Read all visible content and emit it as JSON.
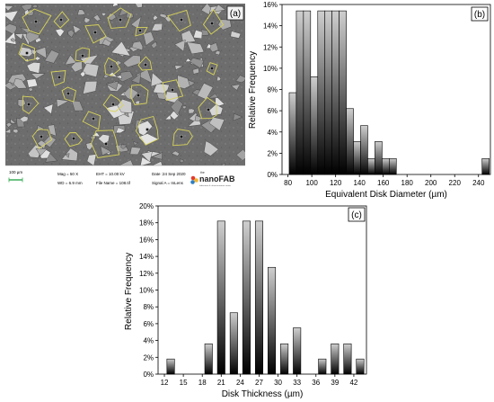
{
  "panel_a": {
    "tag": "(a)",
    "scalebar": "100 µm",
    "mag": "Mag =    50 X",
    "wd": "WD =   6.9 mm",
    "eht": "EHT = 10.00 kV",
    "file": "File Name = 108.tif",
    "date": "Date :24 Sep 2020",
    "signal": "Signal A = InLens",
    "logo_small": "the",
    "logo_big": "nanoFAB",
    "logo_sub": "fabrication & characterization centre"
  },
  "chart_data": [
    {
      "id": "b",
      "type": "bar",
      "tag": "(b)",
      "xlabel": "Equivalent Disk Diameter (µm)",
      "ylabel": "Relative Frequency",
      "xlim": [
        75,
        250
      ],
      "xticks": [
        80,
        100,
        120,
        140,
        160,
        180,
        200,
        220,
        240
      ],
      "ylim": [
        0,
        16
      ],
      "yticks": [
        0,
        2,
        4,
        6,
        8,
        10,
        12,
        14,
        16
      ],
      "ytick_suffix": "%",
      "bin_width": 6,
      "x": [
        84,
        90,
        96,
        102,
        108,
        114,
        120,
        126,
        132,
        138,
        144,
        150,
        156,
        162,
        168,
        174,
        246
      ],
      "values": [
        7.7,
        15.4,
        15.4,
        9.2,
        15.4,
        15.4,
        15.4,
        15.4,
        6.2,
        3.1,
        4.6,
        1.5,
        3.1,
        1.5,
        1.5,
        0,
        1.5
      ]
    },
    {
      "id": "c",
      "type": "bar",
      "tag": "(c)",
      "xlabel": "Disk Thickness (µm)",
      "ylabel": "Relative Frequency",
      "xlim": [
        11,
        44
      ],
      "xticks": [
        12,
        15,
        18,
        21,
        24,
        27,
        30,
        33,
        36,
        39,
        42
      ],
      "ylim": [
        0,
        20
      ],
      "yticks": [
        0,
        2,
        4,
        6,
        8,
        10,
        12,
        14,
        16,
        18,
        20
      ],
      "ytick_suffix": "%",
      "bin_width": 1.2,
      "x": [
        13,
        19,
        21,
        23,
        25,
        27,
        29,
        31,
        33,
        37,
        39,
        41,
        43
      ],
      "values": [
        1.8,
        3.6,
        18.2,
        7.3,
        18.2,
        18.2,
        12.7,
        3.6,
        5.5,
        1.8,
        3.6,
        3.6,
        1.8
      ]
    }
  ]
}
